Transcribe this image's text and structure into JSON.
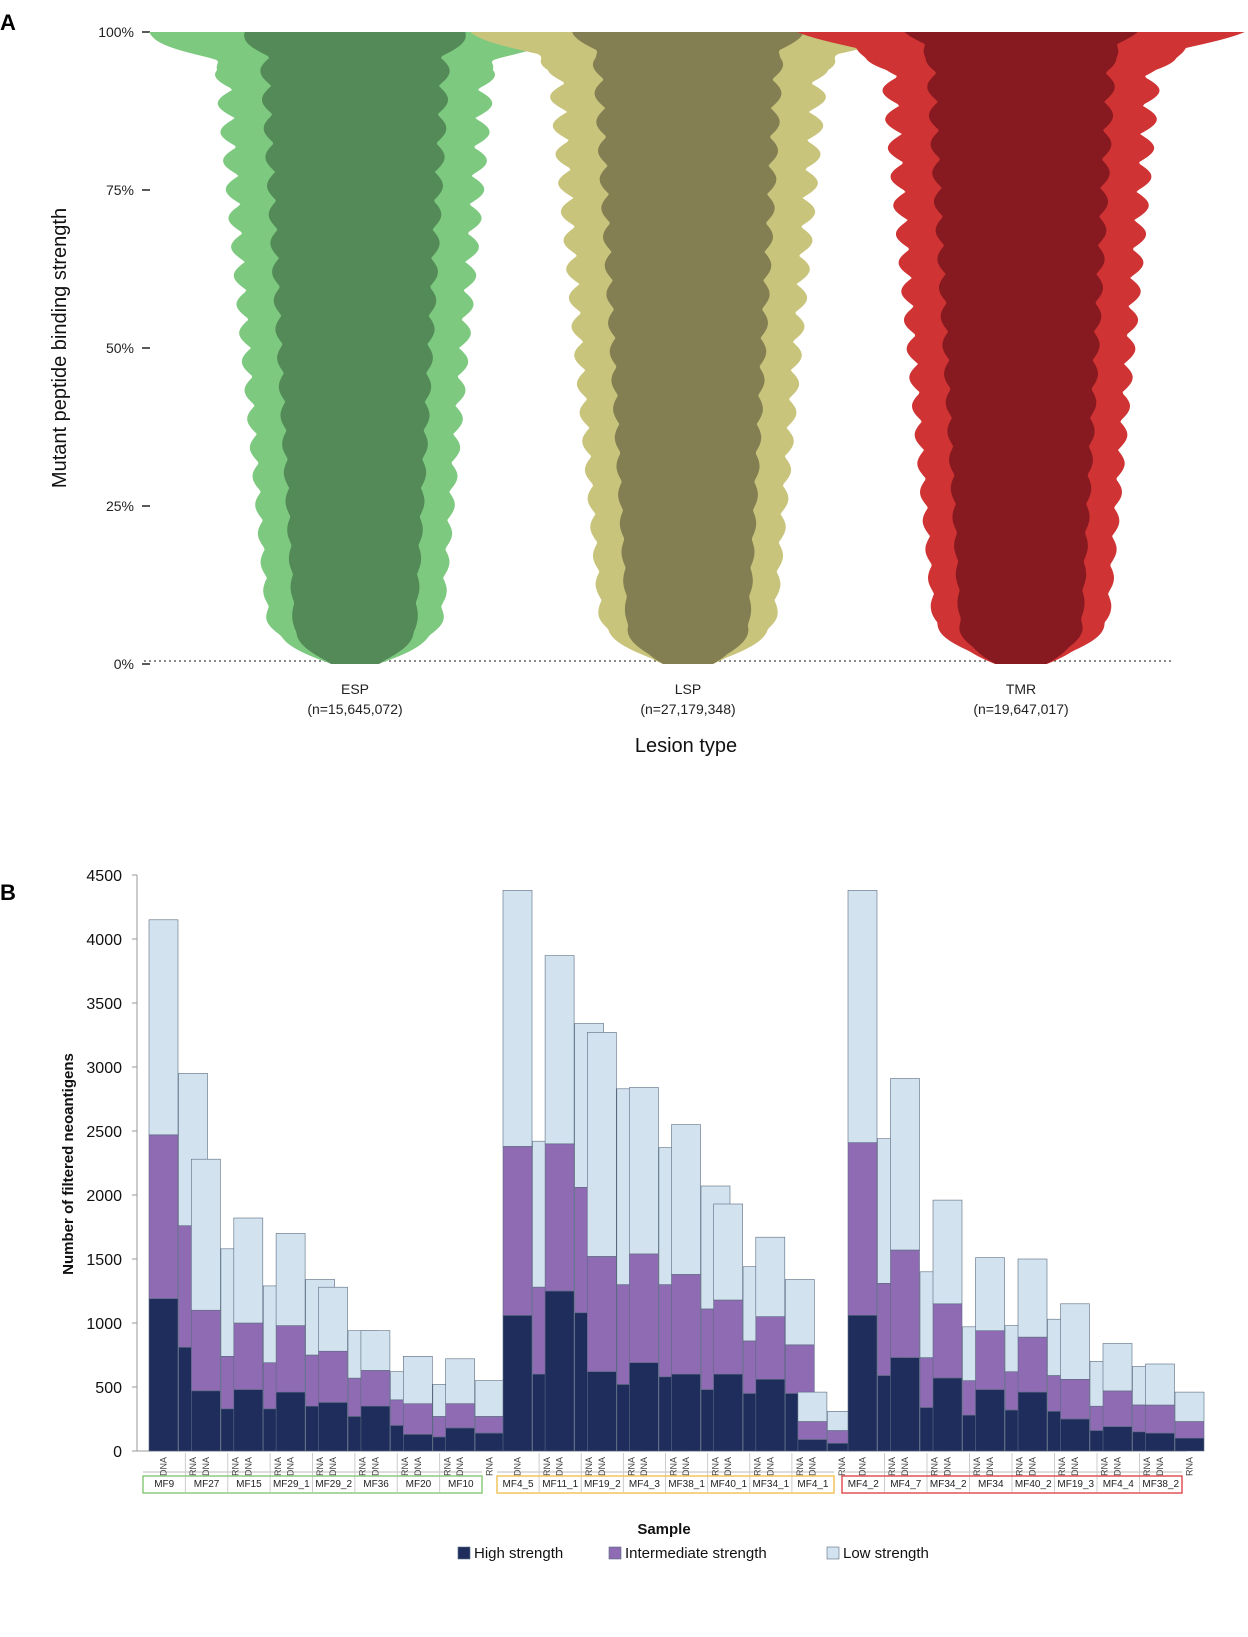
{
  "colors": {
    "esp_outer": "#7dc97f",
    "esp_inner": "#538a58",
    "lsp_outer": "#c9c47c",
    "lsp_inner": "#837f52",
    "tmr_outer": "#d03333",
    "tmr_inner": "#861a20",
    "high": "#1e2d5c",
    "intermediate": "#8f6bb4",
    "low": "#d2e3ef",
    "esp_box": "#8ccb7e",
    "lsp_box": "#f2c35b",
    "tmr_box": "#e05357"
  },
  "chart_data": [
    {
      "panel": "A",
      "type": "area",
      "subtype": "violin",
      "ylabel": "Mutant peptide binding strength",
      "xlabel": "Lesion type",
      "y_ticks": [
        "0%",
        "25%",
        "50%",
        "75%",
        "100%"
      ],
      "y_tick_values": [
        0,
        25,
        50,
        75,
        100
      ],
      "ylim": [
        0,
        100
      ],
      "violins": [
        {
          "name": "ESP",
          "n_label": "(n=15,645,072)",
          "outer_color_key": "esp_outer",
          "inner_color_key": "esp_inner"
        },
        {
          "name": "LSP",
          "n_label": "(n=27,179,348)",
          "outer_color_key": "lsp_outer",
          "inner_color_key": "lsp_inner"
        },
        {
          "name": "TMR",
          "n_label": "(n=19,647,017)",
          "outer_color_key": "tmr_outer",
          "inner_color_key": "tmr_inner"
        }
      ]
    },
    {
      "panel": "B",
      "type": "bar",
      "stacked": true,
      "ylabel": "Number of filtered neoantigens",
      "xlabel": "Sample",
      "ylim": [
        0,
        4500
      ],
      "y_ticks": [
        0,
        500,
        1000,
        1500,
        2000,
        2500,
        3000,
        3500,
        4000,
        4500
      ],
      "legend": [
        "High strength",
        "Intermediate strength",
        "Low strength"
      ],
      "legend_position": "bottom",
      "bar_sublabels": [
        "DNA",
        "RNA"
      ],
      "groups": [
        {
          "lesion": "ESP",
          "box_color_key": "esp_box",
          "samples": [
            {
              "name": "MF9",
              "dna": [
                1190,
                1280,
                1680
              ],
              "rna": [
                810,
                950,
                1190
              ]
            },
            {
              "name": "MF27",
              "dna": [
                470,
                630,
                1180
              ],
              "rna": [
                330,
                410,
                840
              ]
            },
            {
              "name": "MF15",
              "dna": [
                480,
                520,
                820
              ],
              "rna": [
                330,
                360,
                600
              ]
            },
            {
              "name": "MF29_1",
              "dna": [
                460,
                520,
                720
              ],
              "rna": [
                350,
                400,
                590
              ]
            },
            {
              "name": "MF29_2",
              "dna": [
                380,
                400,
                500
              ],
              "rna": [
                270,
                300,
                370
              ]
            },
            {
              "name": "MF36",
              "dna": [
                350,
                280,
                310
              ],
              "rna": [
                200,
                200,
                220
              ]
            },
            {
              "name": "MF20",
              "dna": [
                130,
                240,
                370
              ],
              "rna": [
                110,
                160,
                250
              ]
            },
            {
              "name": "MF10",
              "dna": [
                180,
                190,
                350
              ],
              "rna": [
                140,
                130,
                280
              ]
            }
          ]
        },
        {
          "lesion": "LSP",
          "box_color_key": "lsp_box",
          "samples": [
            {
              "name": "MF4_5",
              "dna": [
                1060,
                1320,
                2000
              ],
              "rna": [
                600,
                680,
                1140
              ]
            },
            {
              "name": "MF11_1",
              "dna": [
                1250,
                1150,
                1470
              ],
              "rna": [
                1080,
                980,
                1280
              ]
            },
            {
              "name": "MF19_2",
              "dna": [
                620,
                900,
                1750
              ],
              "rna": [
                520,
                780,
                1530
              ]
            },
            {
              "name": "MF4_3",
              "dna": [
                690,
                850,
                1300
              ],
              "rna": [
                580,
                720,
                1070
              ]
            },
            {
              "name": "MF38_1",
              "dna": [
                600,
                780,
                1170
              ],
              "rna": [
                480,
                630,
                960
              ]
            },
            {
              "name": "MF40_1",
              "dna": [
                600,
                580,
                750
              ],
              "rna": [
                450,
                410,
                580
              ]
            },
            {
              "name": "MF34_1",
              "dna": [
                560,
                490,
                620
              ],
              "rna": [
                450,
                380,
                510
              ]
            },
            {
              "name": "MF4_1",
              "dna": [
                90,
                140,
                230
              ],
              "rna": [
                60,
                100,
                150
              ]
            }
          ]
        },
        {
          "lesion": "TMR",
          "box_color_key": "tmr_box",
          "samples": [
            {
              "name": "MF4_2",
              "dna": [
                1060,
                1350,
                1970
              ],
              "rna": [
                590,
                720,
                1130
              ]
            },
            {
              "name": "MF4_7",
              "dna": [
                730,
                840,
                1340
              ],
              "rna": [
                340,
                390,
                670
              ]
            },
            {
              "name": "MF34_2",
              "dna": [
                570,
                580,
                810
              ],
              "rna": [
                280,
                270,
                420
              ]
            },
            {
              "name": "MF34",
              "dna": [
                480,
                460,
                570
              ],
              "rna": [
                320,
                300,
                360
              ]
            },
            {
              "name": "MF40_2",
              "dna": [
                460,
                430,
                610
              ],
              "rna": [
                310,
                280,
                440
              ]
            },
            {
              "name": "MF19_3",
              "dna": [
                250,
                310,
                590
              ],
              "rna": [
                160,
                190,
                350
              ]
            },
            {
              "name": "MF4_4",
              "dna": [
                190,
                280,
                370
              ],
              "rna": [
                150,
                210,
                300
              ]
            },
            {
              "name": "MF38_2",
              "dna": [
                140,
                220,
                320
              ],
              "rna": [
                100,
                130,
                230
              ]
            }
          ]
        }
      ]
    }
  ],
  "labels": {
    "panel_a": "A",
    "panel_b": "B"
  }
}
